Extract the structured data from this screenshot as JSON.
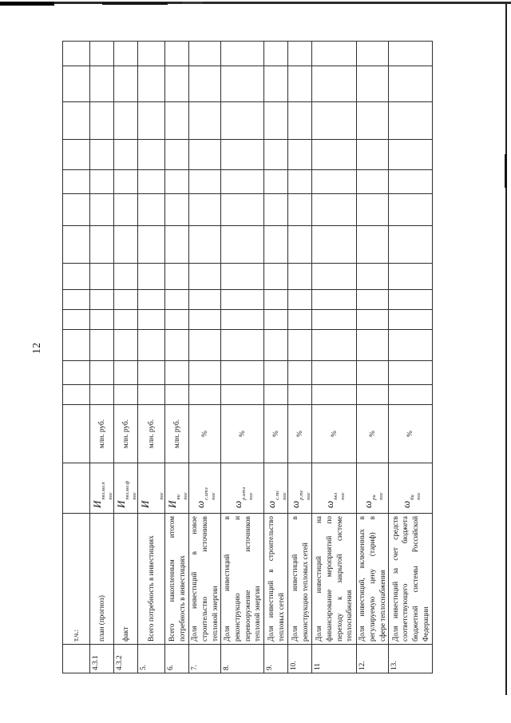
{
  "page": {
    "number": "12"
  },
  "table": {
    "year_columns": 13,
    "rows": [
      {
        "num": "",
        "desc_lines": [
          "т.ч.:"
        ],
        "sym_base": "",
        "sym_sup": "",
        "sym_sub": "",
        "unit": ""
      },
      {
        "num": "4.3.1",
        "desc_lines": [
          "план (прогноз)"
        ],
        "sym_base": "И",
        "sym_sup": "пвз.мл.п",
        "sym_sub": "пос",
        "unit": "млн. руб."
      },
      {
        "num": "4.3.2",
        "desc_lines": [
          "факт"
        ],
        "sym_base": "И",
        "sym_sup": "пвз.мл.ф",
        "sym_sub": "пос",
        "unit": "млн. руб."
      },
      {
        "num": "5.",
        "desc_lines": [
          "Всего потребность в инвестициях"
        ],
        "sym_base": "И",
        "sym_sup": "",
        "sym_sub": "пос",
        "unit": "млн. руб."
      },
      {
        "num": "6.",
        "desc_lines": [
          "Всего накопленным итогом",
          "потребность в инвестициях"
        ],
        "sym_base": "И",
        "sym_sup": "ни",
        "sym_sub": "пос",
        "unit": "млн. руб."
      },
      {
        "num": "7.",
        "desc_lines": [
          "Доля инвестиций в новое",
          "строительство источников",
          "тепловой энергии"
        ],
        "sym_base": "ω",
        "sym_sup": "с.итэ",
        "sym_sub": "пос",
        "unit": "%"
      },
      {
        "num": "8.",
        "desc_lines": [
          "Доля инвестиций в",
          "реконструкцию и",
          "перевооружение источников",
          "тепловой энергии"
        ],
        "sym_base": "ω",
        "sym_sup": "р.итэ",
        "sym_sub": "пос",
        "unit": "%"
      },
      {
        "num": "9.",
        "desc_lines": [
          "Доля инвестиций в строительство",
          "тепловых сетей"
        ],
        "sym_base": "ω",
        "sym_sup": "с.тс",
        "sym_sub": "пос",
        "unit": "%"
      },
      {
        "num": "10.",
        "desc_lines": [
          "Доля инвестиций в",
          "реконструкцию тепловых сетей"
        ],
        "sym_base": "ω",
        "sym_sup": "р.тс",
        "sym_sub": "пос",
        "unit": "%"
      },
      {
        "num": "11",
        "desc_lines": [
          "Доля инвестиций на",
          "финансирование мероприятий по",
          "переходу к закрытой системе",
          "теплоснабжения"
        ],
        "sym_base": "ω",
        "sym_sup": "пкз",
        "sym_sub": "пос",
        "unit": "%"
      },
      {
        "num": "12.",
        "desc_lines": [
          "Доля инвестиций, включенных в",
          "регулируемую цену (тариф) в",
          "сфере теплоснабжения"
        ],
        "sym_base": "ω",
        "sym_sup": "ри",
        "sym_sub": "пос",
        "unit": "%"
      },
      {
        "num": "13.",
        "desc_lines": [
          "Доля инвестиций за счет средств",
          "соответствующего бюджета",
          "бюджетной системы Российской",
          "Федерации"
        ],
        "sym_base": "ω",
        "sym_sup": "би",
        "sym_sub": "пос",
        "unit": "%"
      }
    ]
  }
}
